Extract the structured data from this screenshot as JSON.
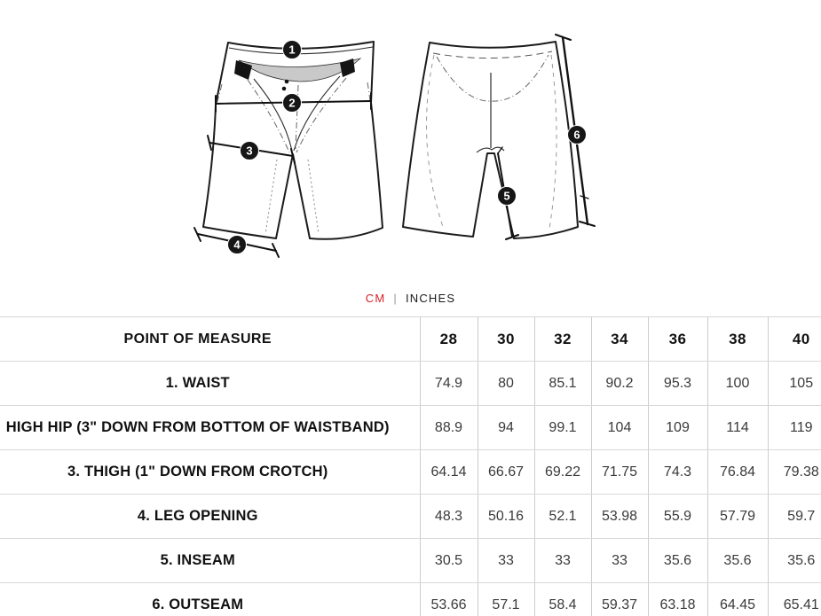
{
  "colors": {
    "active_unit_red": "#d92127",
    "ink": "#1c1c1c",
    "table_border": "#cccccc"
  },
  "unit_toggle": {
    "cm_label": "CM",
    "divider": "|",
    "inches_label": "INCHES"
  },
  "diagram": {
    "description": "shorts-front-and-back-measurement-diagram",
    "markers": [
      "1",
      "2",
      "3",
      "4",
      "5",
      "6"
    ]
  },
  "table": {
    "header": {
      "label": "POINT OF MEASURE",
      "sizes": [
        "28",
        "30",
        "32",
        "34",
        "36",
        "38",
        "40"
      ]
    },
    "rows": [
      {
        "label": "1. WAIST",
        "values": [
          "74.9",
          "80",
          "85.1",
          "90.2",
          "95.3",
          "100",
          "105"
        ]
      },
      {
        "label": "HIGH HIP (3\" DOWN FROM BOTTOM OF WAISTBAND)",
        "values": [
          "88.9",
          "94",
          "99.1",
          "104",
          "109",
          "114",
          "119"
        ]
      },
      {
        "label": "3. THIGH (1\" DOWN FROM CROTCH)",
        "values": [
          "64.14",
          "66.67",
          "69.22",
          "71.75",
          "74.3",
          "76.84",
          "79.38"
        ]
      },
      {
        "label": "4. LEG OPENING",
        "values": [
          "48.3",
          "50.16",
          "52.1",
          "53.98",
          "55.9",
          "57.79",
          "59.7"
        ]
      },
      {
        "label": "5. INSEAM",
        "values": [
          "30.5",
          "33",
          "33",
          "33",
          "35.6",
          "35.6",
          "35.6"
        ]
      },
      {
        "label": "6. OUTSEAM",
        "values": [
          "53.66",
          "57.1",
          "58.4",
          "59.37",
          "63.18",
          "64.45",
          "65.41"
        ]
      }
    ]
  }
}
